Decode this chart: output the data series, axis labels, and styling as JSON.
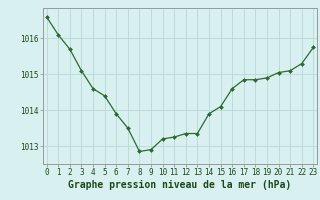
{
  "hours": [
    0,
    1,
    2,
    3,
    4,
    5,
    6,
    7,
    8,
    9,
    10,
    11,
    12,
    13,
    14,
    15,
    16,
    17,
    18,
    19,
    20,
    21,
    22,
    23
  ],
  "pressure": [
    1016.6,
    1016.1,
    1015.7,
    1015.1,
    1014.6,
    1014.4,
    1013.9,
    1013.5,
    1012.85,
    1012.9,
    1013.2,
    1013.25,
    1013.35,
    1013.35,
    1013.9,
    1014.1,
    1014.6,
    1014.85,
    1014.85,
    1014.9,
    1015.05,
    1015.1,
    1015.3,
    1015.75
  ],
  "line_color": "#2d6a2d",
  "marker": "D",
  "marker_size": 2.0,
  "bg_color": "#d9f0f0",
  "grid_color": "#b8d8d8",
  "xlabel": "Graphe pression niveau de la mer (hPa)",
  "xlabel_fontsize": 7.0,
  "tick_fontsize": 5.5,
  "ylim": [
    1012.5,
    1016.85
  ],
  "yticks": [
    1013,
    1014,
    1015,
    1016
  ],
  "spine_color": "#999999",
  "xlim_left": -0.3,
  "xlim_right": 23.3
}
